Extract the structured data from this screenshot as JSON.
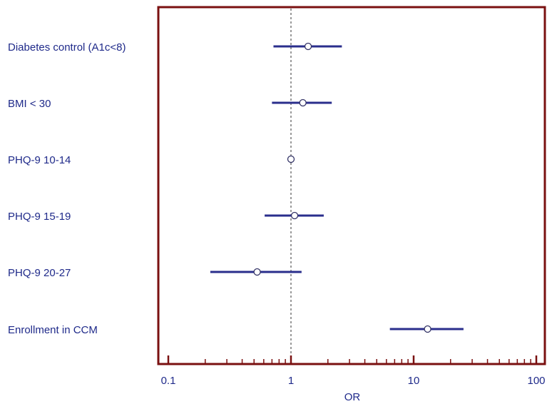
{
  "chart_data": {
    "type": "forest",
    "xlabel": "OR",
    "x_scale": "log",
    "xlim": [
      0.1,
      100
    ],
    "x_ticks": [
      0.1,
      1,
      10,
      100
    ],
    "x_tick_labels": [
      "0.1",
      "1",
      "10",
      "100"
    ],
    "reference_line": 1,
    "categories": [
      "Diabetes control (A1c<8)",
      "BMI < 30",
      "PHQ-9 10-14",
      "PHQ-9 15-19",
      "PHQ-9 20-27",
      "Enrollment in CCM"
    ],
    "estimates": [
      1.38,
      1.25,
      1.0,
      1.07,
      0.53,
      13.0
    ],
    "ci_lower": [
      0.72,
      0.7,
      null,
      0.61,
      0.22,
      6.4
    ],
    "ci_upper": [
      2.6,
      2.15,
      null,
      1.85,
      1.22,
      25.5
    ],
    "grid": false,
    "colors": {
      "frame": "#7a1010",
      "series": "#2a2e8c",
      "text": "#1f2a8a",
      "reference": "#333333"
    }
  }
}
